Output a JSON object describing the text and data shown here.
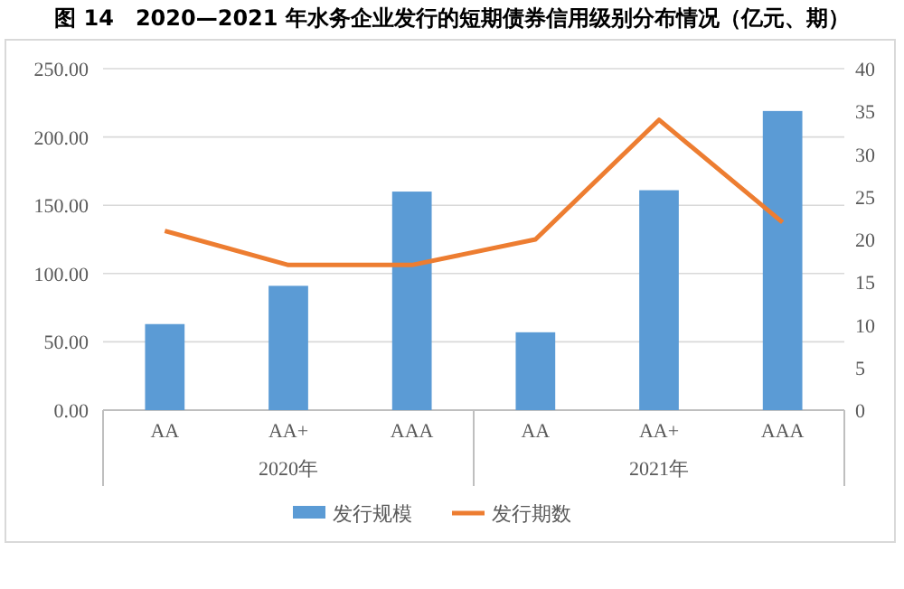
{
  "chart_data": {
    "type": "bar",
    "title": "图 14　2020—2021 年水务企业发行的短期债券信用级别分布情况（亿元、期）",
    "categories": [
      "AA",
      "AA+",
      "AAA",
      "AA",
      "AA+",
      "AAA"
    ],
    "annotations": [
      "2020年",
      "2021年"
    ],
    "series": [
      {
        "name": "发行规模",
        "color": "#5b9bd5",
        "values": [
          63,
          91,
          160,
          57,
          161,
          219
        ]
      },
      {
        "name": "发行期数",
        "type": "line",
        "axis": "y2",
        "color": "#ed7d31",
        "values": [
          21,
          17,
          17,
          20,
          34,
          22
        ]
      }
    ],
    "ylim": [
      0,
      250
    ],
    "yticks": [
      {
        "value": 0,
        "label": "0.00"
      },
      {
        "value": 50,
        "label": "50.00"
      },
      {
        "value": 100,
        "label": "100.00"
      },
      {
        "value": 150,
        "label": "150.00"
      },
      {
        "value": 200,
        "label": "200.00"
      },
      {
        "value": 250,
        "label": "250.00"
      }
    ],
    "y2lim": [
      0,
      40
    ],
    "y2ticks": [
      0,
      5,
      10,
      15,
      20,
      25,
      30,
      35,
      40
    ],
    "grid": "y",
    "legend": "bottom"
  }
}
